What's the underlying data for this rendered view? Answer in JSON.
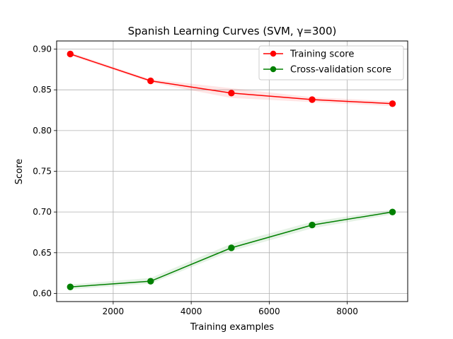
{
  "chart_data": {
    "type": "line",
    "title": "Spanish Learning Curves (SVM, γ=300)",
    "xlabel": "Training examples",
    "ylabel": "Score",
    "xlim": [
      550,
      9550
    ],
    "ylim": [
      0.59,
      0.91
    ],
    "xticks": [
      2000,
      4000,
      6000,
      8000
    ],
    "yticks": [
      0.6,
      0.65,
      0.7,
      0.75,
      0.8,
      0.85,
      0.9
    ],
    "grid": true,
    "legend_position": "top-right",
    "x": [
      900,
      2960,
      5030,
      7100,
      9160
    ],
    "series": [
      {
        "name": "Training score",
        "color": "#ff0000",
        "band_color": "#ff0000",
        "values": [
          0.894,
          0.861,
          0.846,
          0.838,
          0.833
        ],
        "band_lower": [
          0.892,
          0.859,
          0.84,
          0.835,
          0.83
        ],
        "band_upper": [
          0.896,
          0.863,
          0.852,
          0.841,
          0.836
        ]
      },
      {
        "name": "Cross-validation score",
        "color": "#008000",
        "band_color": "#008000",
        "values": [
          0.608,
          0.615,
          0.656,
          0.684,
          0.7
        ],
        "band_lower": [
          0.605,
          0.612,
          0.652,
          0.68,
          0.697
        ],
        "band_upper": [
          0.611,
          0.619,
          0.661,
          0.688,
          0.703
        ]
      }
    ]
  }
}
